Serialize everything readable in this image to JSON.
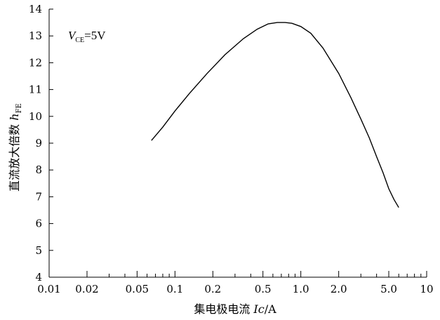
{
  "chart_data": {
    "type": "line",
    "x_scale": "log",
    "xlim": [
      0.01,
      10
    ],
    "ylim": [
      4,
      14
    ],
    "x_tick_labels": [
      "0.01",
      "0.02",
      "0.05",
      "0.1",
      "0.2",
      "0.5",
      "1.0",
      "2.0",
      "5.0",
      "10"
    ],
    "y_tick_labels": [
      "4",
      "5",
      "6",
      "7",
      "8",
      "9",
      "10",
      "11",
      "12",
      "13",
      "14"
    ],
    "xlabel": {
      "main": "集电极电流 ",
      "symbol": "I",
      "sub": "c",
      "unit": "/A"
    },
    "ylabel": {
      "main": "直流放大倍数 ",
      "symbol": "h",
      "sub": "FE"
    },
    "annotation": {
      "symbol": "V",
      "sub": "CE",
      "value": "=5V"
    },
    "grid": false,
    "series": [
      {
        "x": [
          0.065,
          0.08,
          0.1,
          0.13,
          0.18,
          0.25,
          0.35,
          0.45,
          0.55,
          0.65,
          0.75,
          0.85,
          1.0,
          1.2,
          1.5,
          2.0,
          2.5,
          3.0,
          3.5,
          4.0,
          4.5,
          5.0,
          5.5,
          6.0
        ],
        "y": [
          9.1,
          9.6,
          10.2,
          10.85,
          11.6,
          12.3,
          12.9,
          13.25,
          13.45,
          13.5,
          13.5,
          13.47,
          13.35,
          13.1,
          12.55,
          11.6,
          10.7,
          9.9,
          9.2,
          8.5,
          7.9,
          7.3,
          6.9,
          6.6
        ]
      }
    ]
  }
}
